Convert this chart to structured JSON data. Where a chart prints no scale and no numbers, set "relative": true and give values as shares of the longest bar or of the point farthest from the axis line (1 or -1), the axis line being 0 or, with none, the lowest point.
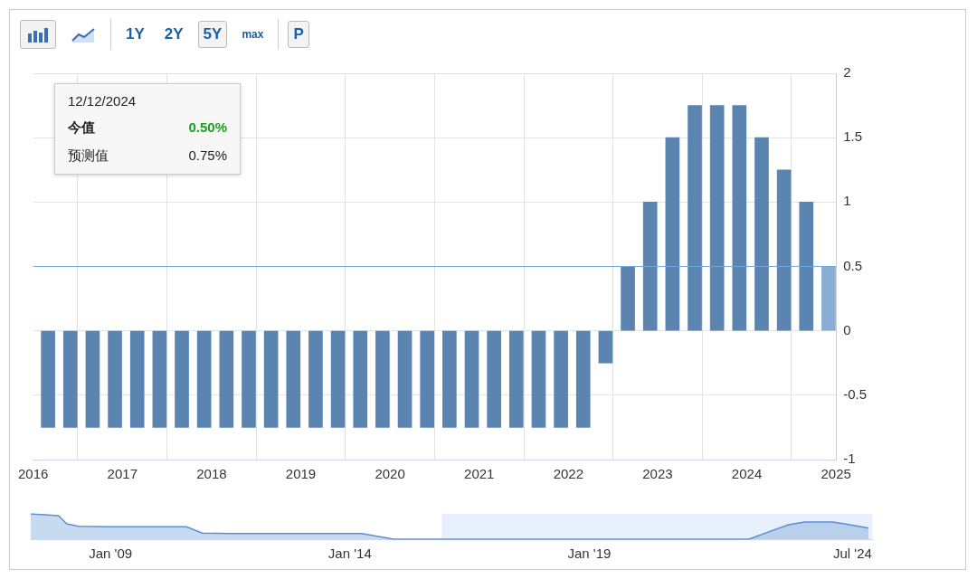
{
  "chart_data": [
    {
      "type": "bar",
      "annotations": [
        "1Y",
        "2Y",
        "5Y",
        "max",
        "P",
        "12/12/2024",
        "今值",
        "0.50%",
        "预测值",
        "0.75%"
      ],
      "x": [
        "2016-03",
        "2016-06",
        "2016-09",
        "2016-12",
        "2017-03",
        "2017-06",
        "2017-09",
        "2017-12",
        "2018-03",
        "2018-06",
        "2018-09",
        "2018-12",
        "2019-03",
        "2019-06",
        "2019-09",
        "2019-12",
        "2020-03",
        "2020-06",
        "2020-09",
        "2020-12",
        "2021-03",
        "2021-06",
        "2021-09",
        "2021-12",
        "2022-03",
        "2022-06",
        "2022-09",
        "2022-12",
        "2023-03",
        "2023-06",
        "2023-09",
        "2023-12",
        "2024-03",
        "2024-06",
        "2024-09",
        "2024-12"
      ],
      "values": [
        -0.75,
        -0.75,
        -0.75,
        -0.75,
        -0.75,
        -0.75,
        -0.75,
        -0.75,
        -0.75,
        -0.75,
        -0.75,
        -0.75,
        -0.75,
        -0.75,
        -0.75,
        -0.75,
        -0.75,
        -0.75,
        -0.75,
        -0.75,
        -0.75,
        -0.75,
        -0.75,
        -0.75,
        -0.75,
        -0.25,
        0.5,
        1,
        1.5,
        1.75,
        1.75,
        1.75,
        1.5,
        1.25,
        1,
        0.5
      ],
      "colors": [
        "#5b84b1",
        "#5b84b1",
        "#5b84b1",
        "#5b84b1",
        "#5b84b1",
        "#5b84b1",
        "#5b84b1",
        "#5b84b1",
        "#5b84b1",
        "#5b84b1",
        "#5b84b1",
        "#5b84b1",
        "#5b84b1",
        "#5b84b1",
        "#5b84b1",
        "#5b84b1",
        "#5b84b1",
        "#5b84b1",
        "#5b84b1",
        "#5b84b1",
        "#5b84b1",
        "#5b84b1",
        "#5b84b1",
        "#5b84b1",
        "#5b84b1",
        "#5b84b1",
        "#5b84b1",
        "#5b84b1",
        "#5b84b1",
        "#5b84b1",
        "#5b84b1",
        "#5b84b1",
        "#5b84b1",
        "#5b84b1",
        "#5b84b1",
        "#8aaed3"
      ],
      "xlim": [
        "2016",
        "2025"
      ],
      "xticks": [
        "2016",
        "2017",
        "2018",
        "2019",
        "2020",
        "2021",
        "2022",
        "2023",
        "2024",
        "2025"
      ],
      "ylim": [
        -1,
        2
      ],
      "yticks": [
        -1,
        -0.5,
        0,
        0.5,
        1,
        1.5,
        2
      ],
      "ref_lines": [
        {
          "axis": "y",
          "value": 0.5,
          "color": "#6fa8dc"
        }
      ],
      "grid": true,
      "legend": false
    },
    {
      "type": "area",
      "relative": true,
      "color": "#5b8fd0",
      "x": [
        "2007-05",
        "2007-12",
        "2008-02",
        "2008-05",
        "2009-01",
        "2010-08",
        "2010-12",
        "2011-08",
        "2013-04",
        "2014-04",
        "2014-12",
        "2022-05",
        "2022-10",
        "2023-03",
        "2023-07",
        "2024-02",
        "2024-05",
        "2024-11"
      ],
      "values": [
        1,
        0.93,
        0.61,
        0.51,
        0.49,
        0.49,
        0.24,
        0.22,
        0.22,
        0.22,
        0,
        0,
        0.29,
        0.57,
        0.68,
        0.68,
        0.61,
        0.44
      ],
      "xlim": [
        "2007-05",
        "2024-12"
      ],
      "xticks": [
        {
          "value": "2009-01",
          "label": "Jan '09"
        },
        {
          "value": "2014-01",
          "label": "Jan '14"
        },
        {
          "value": "2019-01",
          "label": "Jan '19"
        },
        {
          "value": "2024-07",
          "label": "Jul '24"
        }
      ],
      "bands": [
        {
          "axis": "x",
          "from": "2015-12",
          "to": "2024-12",
          "color": "#cfe2f7"
        }
      ],
      "legend": false
    }
  ]
}
